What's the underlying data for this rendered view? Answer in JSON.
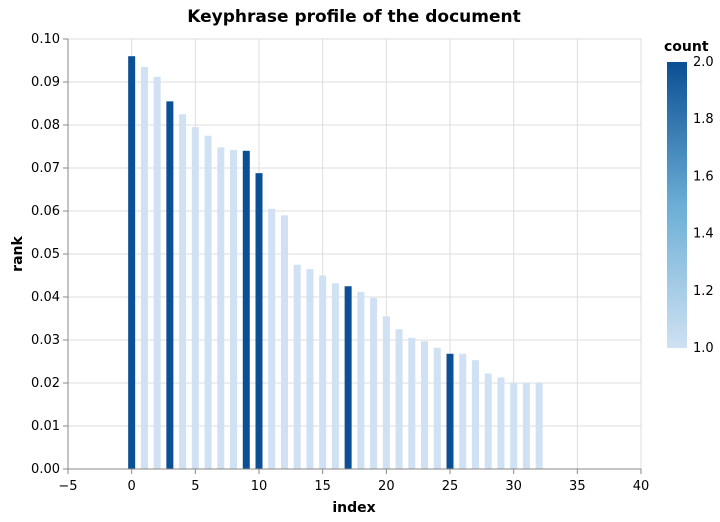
{
  "chart_data": {
    "type": "bar",
    "title": "Keyphrase profile of the document",
    "xlabel": "index",
    "ylabel": "rank",
    "xlim": [
      -5,
      40
    ],
    "ylim": [
      0,
      0.1
    ],
    "x_ticks": [
      "−5",
      "0",
      "5",
      "10",
      "15",
      "20",
      "25",
      "30",
      "35",
      "40"
    ],
    "y_ticks": [
      "0.00",
      "0.01",
      "0.02",
      "0.03",
      "0.04",
      "0.05",
      "0.06",
      "0.07",
      "0.08",
      "0.09",
      "0.10"
    ],
    "grid": true,
    "color_legend": {
      "title": "count",
      "range": [
        1.0,
        2.0
      ],
      "ticks": [
        "2.0",
        "1.8",
        "1.6",
        "1.4",
        "1.2",
        "1.0"
      ],
      "placement": "right",
      "color_low": "#cfe1f2",
      "color_high": "#0b4f94"
    },
    "points": [
      {
        "x": 0,
        "y": 0.096,
        "count": 2
      },
      {
        "x": 1,
        "y": 0.0935,
        "count": 1
      },
      {
        "x": 2,
        "y": 0.0912,
        "count": 1
      },
      {
        "x": 3,
        "y": 0.0855,
        "count": 2
      },
      {
        "x": 4,
        "y": 0.0825,
        "count": 1
      },
      {
        "x": 5,
        "y": 0.0795,
        "count": 1
      },
      {
        "x": 6,
        "y": 0.0775,
        "count": 1
      },
      {
        "x": 7,
        "y": 0.0748,
        "count": 1
      },
      {
        "x": 8,
        "y": 0.0742,
        "count": 1
      },
      {
        "x": 9,
        "y": 0.074,
        "count": 2
      },
      {
        "x": 10,
        "y": 0.0688,
        "count": 2
      },
      {
        "x": 11,
        "y": 0.0605,
        "count": 1
      },
      {
        "x": 12,
        "y": 0.059,
        "count": 1
      },
      {
        "x": 13,
        "y": 0.0475,
        "count": 1
      },
      {
        "x": 14,
        "y": 0.0465,
        "count": 1
      },
      {
        "x": 15,
        "y": 0.045,
        "count": 1
      },
      {
        "x": 16,
        "y": 0.0432,
        "count": 1
      },
      {
        "x": 17,
        "y": 0.0425,
        "count": 2
      },
      {
        "x": 18,
        "y": 0.0412,
        "count": 1
      },
      {
        "x": 19,
        "y": 0.0398,
        "count": 1
      },
      {
        "x": 20,
        "y": 0.0355,
        "count": 1
      },
      {
        "x": 21,
        "y": 0.0325,
        "count": 1
      },
      {
        "x": 22,
        "y": 0.0305,
        "count": 1
      },
      {
        "x": 23,
        "y": 0.0297,
        "count": 1
      },
      {
        "x": 24,
        "y": 0.0282,
        "count": 1
      },
      {
        "x": 25,
        "y": 0.0268,
        "count": 2
      },
      {
        "x": 26,
        "y": 0.0268,
        "count": 1
      },
      {
        "x": 27,
        "y": 0.0253,
        "count": 1
      },
      {
        "x": 28,
        "y": 0.0222,
        "count": 1
      },
      {
        "x": 29,
        "y": 0.0213,
        "count": 1
      },
      {
        "x": 30,
        "y": 0.02,
        "count": 1
      },
      {
        "x": 31,
        "y": 0.02,
        "count": 1
      },
      {
        "x": 32,
        "y": 0.02,
        "count": 1
      }
    ]
  }
}
